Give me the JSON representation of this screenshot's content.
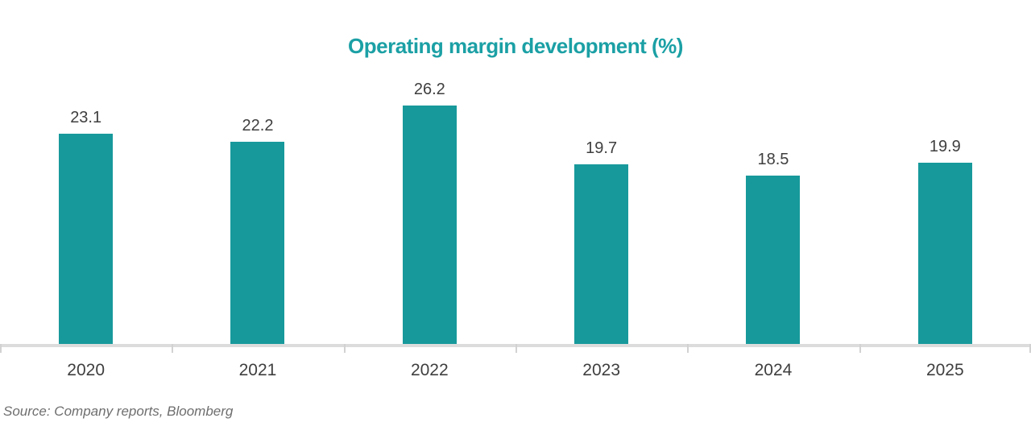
{
  "title": "Operating margin development (%)",
  "source_note": "Source: Company reports, Bloomberg",
  "colors": {
    "accent_teal": "#17999B",
    "title_teal": "#1BA0A5",
    "label_gray": "#3F3F3F",
    "axis_gray": "#DCDCDC",
    "tick_gray": "#D2D2D2",
    "source_gray": "#6E6E6E"
  },
  "chart_data": {
    "type": "bar",
    "title": "Operating margin development (%)",
    "categories": [
      "2020",
      "2021",
      "2022",
      "2023",
      "2024",
      "2025"
    ],
    "values": [
      23.1,
      22.2,
      26.2,
      19.7,
      18.5,
      19.9
    ],
    "value_labels": [
      "23.1",
      "22.2",
      "26.2",
      "19.7",
      "18.5",
      "19.9"
    ],
    "xlabel": "",
    "ylabel": "",
    "ylim": [
      0,
      28
    ],
    "grid": false,
    "legend_position": "none",
    "bar_color": "#17999B",
    "source": "Source: Company reports, Bloomberg"
  }
}
